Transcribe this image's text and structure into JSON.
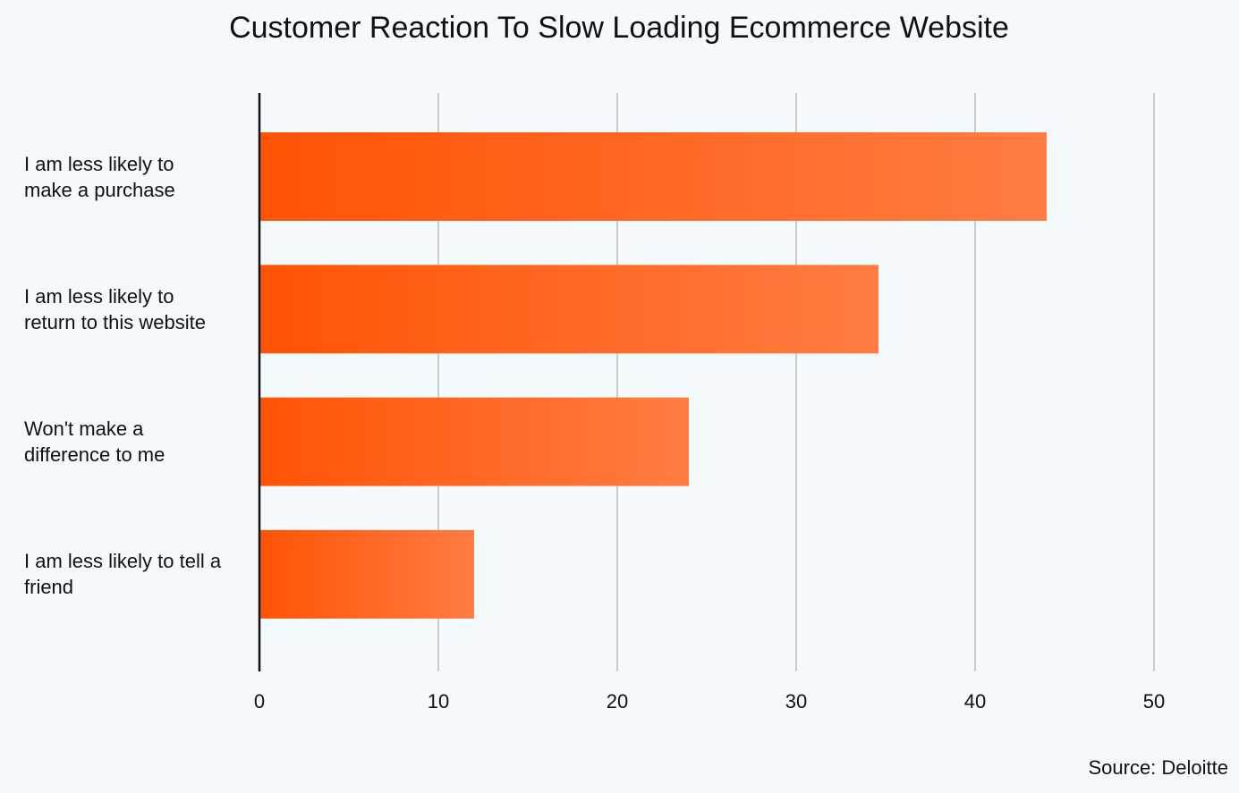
{
  "chart_data": {
    "type": "bar",
    "orientation": "horizontal",
    "title": "Customer Reaction To Slow Loading Ecommerce Website",
    "categories": [
      "I am less likely to make a purchase",
      "I am less likely to return to this website",
      "Won't make a difference to me",
      "I am less likely to tell a friend"
    ],
    "category_lines": [
      [
        "I am less likely to",
        "make a purchase"
      ],
      [
        "I am less likely to",
        "return to this website"
      ],
      [
        "Won't make a",
        "difference to me"
      ],
      [
        "I am less likely to tell a",
        "friend"
      ]
    ],
    "values": [
      44,
      34.6,
      24,
      12
    ],
    "xlim": [
      0,
      50
    ],
    "xticks": [
      0,
      10,
      20,
      30,
      40,
      50
    ],
    "grid": true,
    "colors": {
      "bar_start": "#ff5305",
      "bar_end": "#ff7c42",
      "grid": "#bdbdbd",
      "axis": "#111111"
    },
    "source": "Source: Deloitte"
  }
}
